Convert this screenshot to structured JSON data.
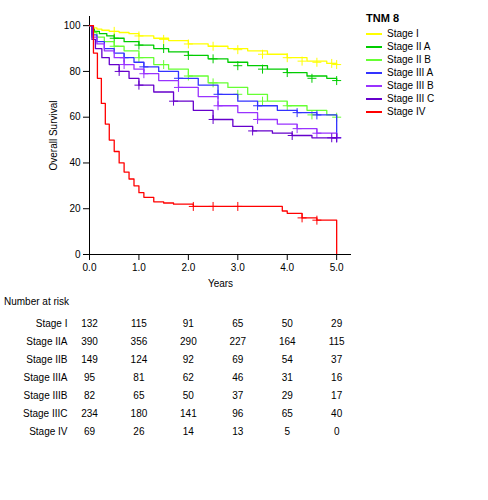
{
  "chart_data": {
    "type": "step",
    "title": "TNM 8",
    "xlabel": "Years",
    "ylabel": "Overall Survival",
    "xlim": [
      0,
      5.3
    ],
    "ylim": [
      0,
      104
    ],
    "xticks": [
      0,
      1,
      2,
      3,
      4,
      5
    ],
    "yticks": [
      0,
      20,
      40,
      60,
      80,
      100
    ],
    "legend": "right",
    "marker": "plus",
    "series": [
      {
        "name": "Stage I",
        "color": "#FFFF00",
        "x": [
          0,
          0.08,
          0.15,
          0.25,
          0.4,
          0.6,
          0.8,
          1.0,
          1.3,
          1.6,
          2.0,
          2.4,
          2.8,
          3.2,
          3.6,
          4.0,
          4.4,
          4.8,
          5.0
        ],
        "values": [
          100,
          99,
          98.5,
          98,
          97.5,
          97,
          96.5,
          95.5,
          94.5,
          93.5,
          92,
          91,
          90,
          89,
          87.5,
          86,
          84.5,
          83.5,
          83
        ],
        "censor_x": [
          0.5,
          1.0,
          1.5,
          2.0,
          2.5,
          3.0,
          3.5,
          4.0,
          4.3,
          4.6,
          4.9,
          5.0
        ],
        "censor_values": [
          97.5,
          95.5,
          94,
          92,
          91,
          89.5,
          87.5,
          86,
          84.5,
          84,
          83.5,
          83
        ]
      },
      {
        "name": "Stage II A",
        "color": "#00CC00",
        "x": [
          0,
          0.05,
          0.1,
          0.2,
          0.35,
          0.5,
          0.7,
          1.0,
          1.3,
          1.6,
          2.0,
          2.4,
          2.8,
          3.2,
          3.6,
          4.0,
          4.4,
          4.8,
          5.0
        ],
        "values": [
          100,
          98.5,
          97.5,
          96.5,
          95.5,
          94.5,
          93,
          91.5,
          90,
          88.5,
          87,
          85.5,
          84,
          82.5,
          81,
          79.5,
          78,
          77,
          76
        ],
        "censor_x": [
          0.5,
          1.0,
          1.5,
          2.0,
          2.5,
          3.0,
          3.5,
          4.0,
          4.5,
          5.0
        ],
        "censor_values": [
          94.5,
          91.5,
          90,
          87,
          85.5,
          82.5,
          81,
          79.5,
          77,
          76
        ]
      },
      {
        "name": "Stage II B",
        "color": "#66FF33",
        "x": [
          0,
          0.05,
          0.15,
          0.3,
          0.5,
          0.7,
          1.0,
          1.3,
          1.6,
          2.0,
          2.4,
          2.8,
          3.2,
          3.6,
          4.0,
          4.4,
          4.8,
          5.0
        ],
        "values": [
          100,
          97,
          95,
          93,
          91,
          89,
          86,
          83,
          81,
          78,
          75,
          73,
          70,
          67,
          65,
          63,
          61,
          60
        ],
        "censor_x": [
          0.5,
          1.0,
          1.5,
          2.0,
          2.5,
          3.0,
          3.5,
          4.0,
          4.5,
          5.0
        ],
        "censor_values": [
          91,
          86,
          83,
          78,
          75,
          70,
          67,
          65,
          61,
          60
        ]
      },
      {
        "name": "Stage III A",
        "color": "#3333FF",
        "x": [
          0,
          0.05,
          0.15,
          0.3,
          0.5,
          0.7,
          0.9,
          1.1,
          1.4,
          1.8,
          2.2,
          2.6,
          3.0,
          3.4,
          3.8,
          4.2,
          4.6,
          5.0
        ],
        "values": [
          100,
          96,
          93,
          90,
          88,
          86,
          84,
          82,
          80,
          77,
          74,
          70,
          67,
          65,
          63,
          62,
          61,
          51
        ],
        "censor_x": [
          0.7,
          1.1,
          1.8,
          2.6,
          3.4,
          4.2,
          4.6,
          5.0
        ],
        "censor_values": [
          86,
          82,
          77,
          70,
          65,
          62,
          61,
          51
        ]
      },
      {
        "name": "Stage III B",
        "color": "#9933FF",
        "x": [
          0,
          0.05,
          0.15,
          0.3,
          0.5,
          0.7,
          0.9,
          1.1,
          1.4,
          1.8,
          2.2,
          2.6,
          3.0,
          3.4,
          3.8,
          4.2,
          4.6,
          5.0
        ],
        "values": [
          100,
          95,
          92,
          89,
          86,
          83,
          81,
          79,
          76,
          73,
          69,
          65,
          62,
          59,
          57,
          55,
          53,
          51
        ],
        "censor_x": [
          0.7,
          1.1,
          1.8,
          2.6,
          3.4,
          4.2,
          4.6,
          5.0
        ],
        "censor_values": [
          83,
          79,
          73,
          65,
          59,
          55,
          53,
          51
        ]
      },
      {
        "name": "Stage III C",
        "color": "#6600CC",
        "x": [
          0,
          0.05,
          0.12,
          0.25,
          0.4,
          0.6,
          0.8,
          1.0,
          1.3,
          1.7,
          2.1,
          2.5,
          2.9,
          3.3,
          3.7,
          4.1,
          4.5,
          4.9,
          5.0
        ],
        "values": [
          100,
          94,
          90,
          86,
          83,
          80,
          77,
          74,
          71,
          67,
          63,
          59,
          56,
          54,
          53,
          52,
          51,
          51,
          51
        ],
        "censor_x": [
          0.6,
          1.0,
          1.7,
          2.5,
          3.3,
          4.1,
          4.9,
          5.0
        ],
        "censor_values": [
          80,
          74,
          67,
          59,
          54,
          52,
          51,
          51
        ]
      },
      {
        "name": "Stage IV",
        "color": "#FF0000",
        "x": [
          0,
          0.08,
          0.16,
          0.24,
          0.32,
          0.4,
          0.5,
          0.6,
          0.7,
          0.8,
          0.9,
          1.0,
          1.1,
          1.3,
          1.5,
          1.7,
          2.0,
          2.1,
          2.5,
          3.0,
          3.5,
          3.9,
          4.0,
          4.3,
          4.6,
          4.85,
          5.0
        ],
        "values": [
          100,
          88,
          77,
          66,
          57,
          50,
          45,
          40,
          36,
          33,
          30,
          27,
          25,
          23,
          22.5,
          22,
          22,
          21,
          21,
          21,
          21,
          19,
          18,
          16,
          15,
          15,
          0
        ],
        "censor_x": [
          2.1,
          2.5,
          3.0,
          4.3,
          4.6
        ],
        "censor_values": [
          21,
          21,
          21,
          16,
          15
        ]
      }
    ],
    "risk_table": {
      "title": "Number at risk",
      "x": [
        0,
        1,
        2,
        3,
        4,
        5
      ],
      "rows": [
        {
          "label": "Stage I",
          "values": [
            132,
            115,
            91,
            65,
            50,
            29
          ]
        },
        {
          "label": "Stage IIA",
          "values": [
            390,
            356,
            290,
            227,
            164,
            115
          ]
        },
        {
          "label": "Stage IIB",
          "values": [
            149,
            124,
            92,
            69,
            54,
            37
          ]
        },
        {
          "label": "Stage IIIA",
          "values": [
            95,
            81,
            62,
            46,
            31,
            16
          ]
        },
        {
          "label": "Stage IIIB",
          "values": [
            82,
            65,
            50,
            37,
            29,
            17
          ]
        },
        {
          "label": "Stage IIIC",
          "values": [
            234,
            180,
            141,
            96,
            65,
            40
          ]
        },
        {
          "label": "Stage IV",
          "values": [
            69,
            26,
            14,
            13,
            5,
            0
          ]
        }
      ]
    }
  }
}
